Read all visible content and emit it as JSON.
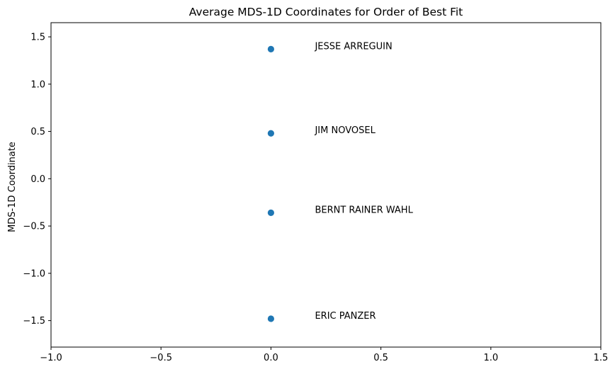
{
  "chart_data": {
    "type": "scatter",
    "title": "Average MDS-1D Coordinates for Order of Best Fit",
    "xlabel": "",
    "ylabel": "MDS-1D Coordinate",
    "xlim": [
      -1.0,
      1.5
    ],
    "ylim": [
      -1.78,
      1.65
    ],
    "xticks": [
      -1.0,
      -0.5,
      0.0,
      0.5,
      1.0,
      1.5
    ],
    "xtick_labels": [
      "−1.0",
      "−0.5",
      "0.0",
      "0.5",
      "1.0",
      "1.5"
    ],
    "yticks": [
      1.5,
      1.0,
      0.5,
      0.0,
      -0.5,
      -1.0,
      -1.5
    ],
    "ytick_labels": [
      "1.5",
      "1.0",
      "0.5",
      "0.0",
      "−0.5",
      "−1.0",
      "−1.5"
    ],
    "grid": false,
    "marker_color": "#1f77b4",
    "label_x": 0.2,
    "points": [
      {
        "label": "JESSE ARREGUIN",
        "x": 0.0,
        "y": 1.37
      },
      {
        "label": "JIM NOVOSEL",
        "x": 0.0,
        "y": 0.48
      },
      {
        "label": "BERNT RAINER WAHL",
        "x": 0.0,
        "y": -0.36
      },
      {
        "label": "ERIC PANZER",
        "x": 0.0,
        "y": -1.48
      }
    ]
  }
}
